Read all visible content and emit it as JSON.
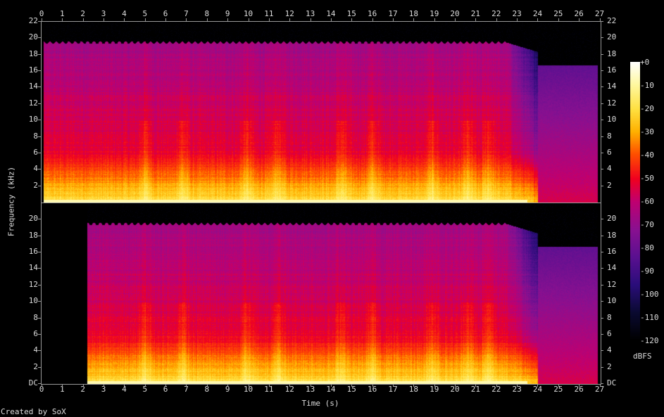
{
  "chart_data": {
    "type": "heatmap",
    "subtype": "spectrogram",
    "channels": 2,
    "xlabel": "Time (s)",
    "ylabel": "Frequency (kHz)",
    "xlim": [
      0,
      27
    ],
    "ylim": [
      0,
      22
    ],
    "x_ticks": [
      "0",
      "1",
      "2",
      "3",
      "4",
      "5",
      "6",
      "7",
      "8",
      "9",
      "10",
      "11",
      "12",
      "13",
      "14",
      "15",
      "16",
      "17",
      "18",
      "19",
      "20",
      "21",
      "22",
      "23",
      "24",
      "25",
      "26",
      "27"
    ],
    "y_ticks_top_panel": [
      "2",
      "4",
      "6",
      "8",
      "10",
      "12",
      "14",
      "16",
      "18",
      "20",
      "22"
    ],
    "y_ticks_bottom_panel": [
      "DC",
      "2",
      "4",
      "6",
      "8",
      "10",
      "12",
      "14",
      "16",
      "18",
      "20"
    ],
    "colorbar": {
      "label": "dBFS",
      "range": [
        -120,
        0
      ],
      "ticks": [
        "+0",
        "-10",
        "-20",
        "-30",
        "-40",
        "-50",
        "-60",
        "-70",
        "-80",
        "-90",
        "-100",
        "-110",
        "-120"
      ],
      "colors": [
        "#000000",
        "#0a0a30",
        "#2a0d7a",
        "#5a1090",
        "#8a1090",
        "#c00070",
        "#f00020",
        "#ff5000",
        "#ffb000",
        "#ffe040",
        "#fff8a0",
        "#ffffff"
      ]
    },
    "features": {
      "channel_1_signal_start_s": 0.1,
      "channel_2_signal_start_s": 2.2,
      "full_band_cutoff_khz": 19.5,
      "full_band_end_s": 22.5,
      "tail_start_s": 24,
      "tail_cutoff_khz": 16.7,
      "signal_end_s": 26.9
    },
    "grid": false
  },
  "footer": {
    "credit": "Created by SoX"
  }
}
